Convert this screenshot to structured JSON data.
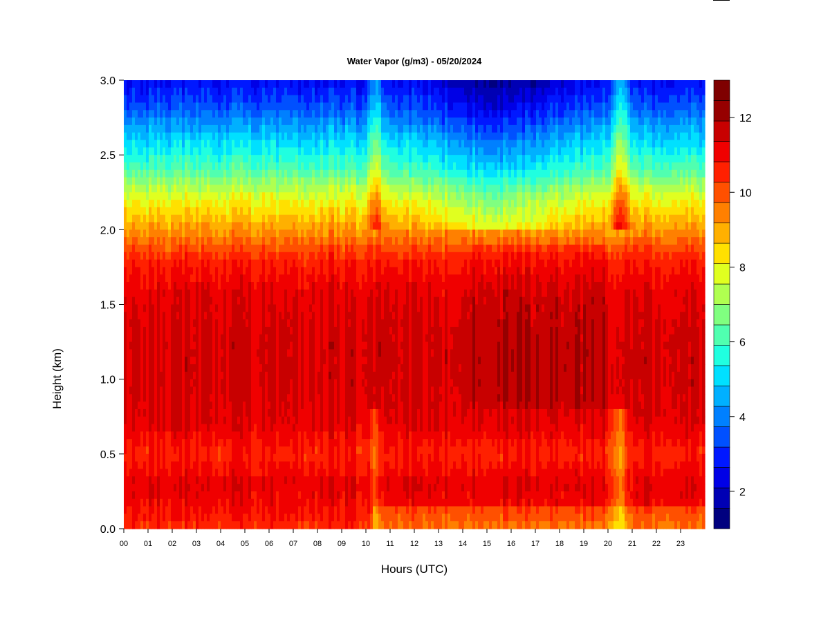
{
  "chart_data": {
    "type": "heatmap",
    "title": "Water Vapor (g/m3) - 05/20/2024",
    "xlabel": "Hours (UTC)",
    "ylabel": "Height (km)",
    "xlim": [
      0,
      24
    ],
    "ylim": [
      0.0,
      3.0
    ],
    "x_ticks": [
      "00",
      "01",
      "02",
      "03",
      "04",
      "05",
      "06",
      "07",
      "08",
      "09",
      "10",
      "11",
      "12",
      "13",
      "14",
      "15",
      "16",
      "17",
      "18",
      "19",
      "20",
      "21",
      "22",
      "23"
    ],
    "y_ticks": [
      "0.0",
      "0.5",
      "1.0",
      "1.5",
      "2.0",
      "2.5",
      "3.0"
    ],
    "colorbar": {
      "range": [
        1,
        13
      ],
      "ticks": [
        "2",
        "4",
        "6",
        "8",
        "10",
        "12"
      ],
      "colors": [
        "#00007F",
        "#0000B4",
        "#0000E6",
        "#0018FF",
        "#0050FF",
        "#0080FF",
        "#00B0FF",
        "#00E0FF",
        "#20FFE0",
        "#50FFB0",
        "#80FF80",
        "#B0FF50",
        "#E0FF20",
        "#FFE000",
        "#FFB000",
        "#FF8000",
        "#FF5000",
        "#FF2000",
        "#F00000",
        "#C80000",
        "#960000",
        "#7F0000"
      ]
    },
    "profile": {
      "height_km": [
        0.0,
        0.1,
        0.3,
        0.5,
        0.7,
        1.0,
        1.3,
        1.6,
        1.8,
        2.0,
        2.2,
        2.4,
        2.6,
        2.8,
        3.0
      ],
      "water_vapor": [
        10.4,
        10.9,
        11.3,
        10.6,
        11.3,
        11.5,
        11.5,
        11.2,
        10.6,
        9.2,
        8.0,
        6.2,
        5.0,
        3.6,
        2.6
      ]
    }
  }
}
